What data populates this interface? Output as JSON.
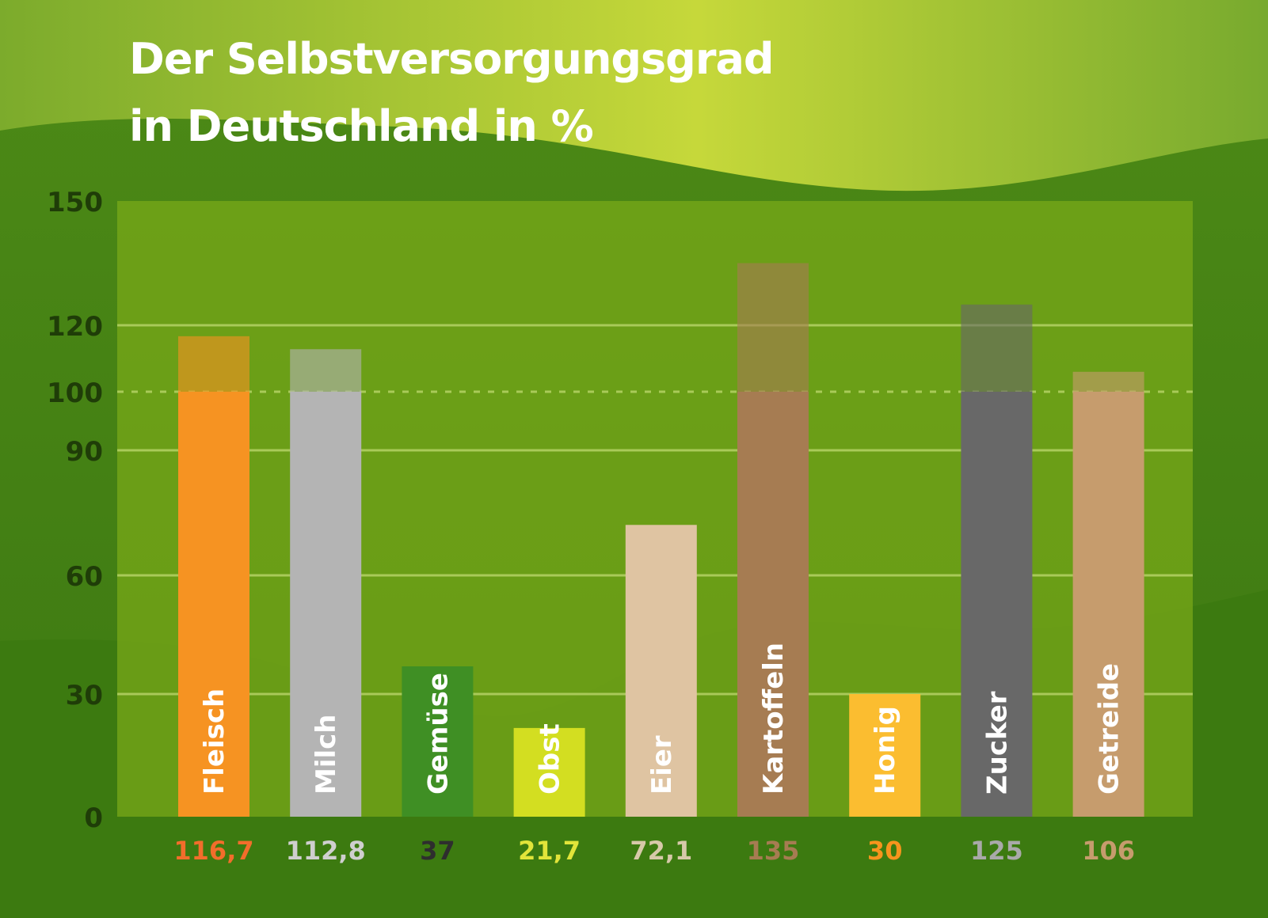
{
  "title": {
    "line1": "Der Selbstversorgungsgrad",
    "line2": "in Deutschland in %"
  },
  "colors": {
    "background_dark": "#3e7a14",
    "background_light": "#c5d63a",
    "plot_area": "#78a818",
    "gridline": "#b9d46a",
    "axis_text": "#1f3d08"
  },
  "chart_data": {
    "type": "bar",
    "title": "Der Selbstversorgungsgrad in Deutschland in %",
    "xlabel": "",
    "ylabel": "",
    "ylim": [
      0,
      150
    ],
    "y_ticks": [
      0,
      30,
      60,
      90,
      100,
      120,
      150
    ],
    "reference_line": 100,
    "grid": true,
    "categories": [
      "Fleisch",
      "Milch",
      "Gemüse",
      "Obst",
      "Eier",
      "Kartoffeln",
      "Honig",
      "Zucker",
      "Getreide"
    ],
    "values": [
      116.7,
      112.8,
      37,
      21.7,
      72.1,
      135,
      30,
      125,
      106
    ],
    "value_labels": [
      "116,7",
      "112,8",
      "37",
      "21,7",
      "72,1",
      "135",
      "30",
      "125",
      "106"
    ],
    "bar_colors": [
      "#f69322",
      "#b4b4b4",
      "#3f8f24",
      "#d3de21",
      "#dfc4a2",
      "#a67c52",
      "#fbbd30",
      "#686868",
      "#c69c6d"
    ],
    "value_label_colors": [
      "#f26d2b",
      "#cfcfcf",
      "#2e2e2e",
      "#e1e43a",
      "#d7c9a9",
      "#a67c52",
      "#f7941d",
      "#a9a9a9",
      "#c69c6d"
    ]
  }
}
